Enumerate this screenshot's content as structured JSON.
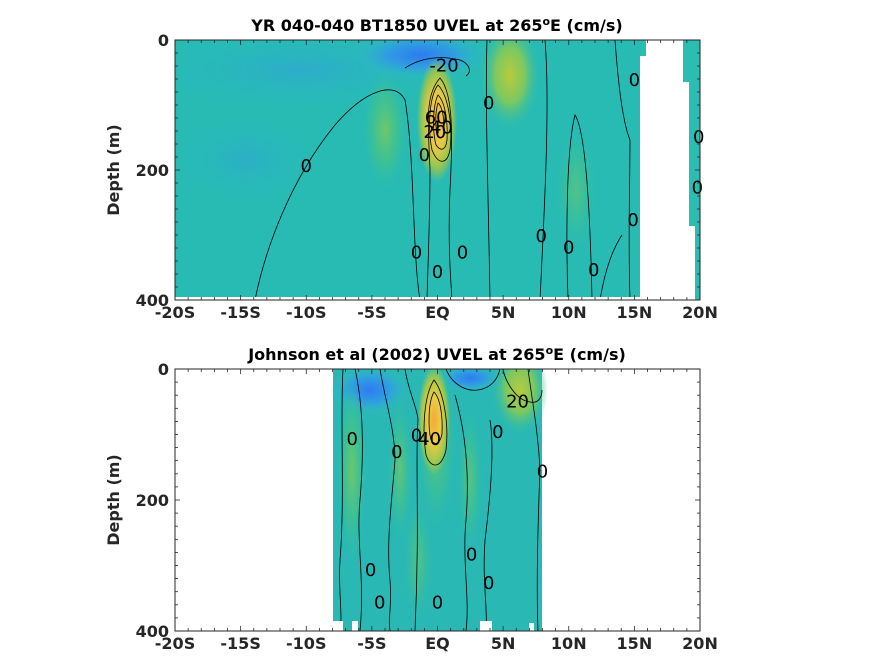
{
  "chart_data": [
    {
      "type": "heatmap",
      "title": "YR 040-040 BT1850 UVEL at 265ºE (cm/s)",
      "title_main": "YR 040-040 BT1850 UVEL at 265",
      "title_sup": "o",
      "title_tail": "E (cm/s)",
      "xlabel": "",
      "ylabel": "Depth (m)",
      "x_ticks": [
        "-20S",
        "-15S",
        "-10S",
        "-5S",
        "EQ",
        "5N",
        "10N",
        "15N",
        "20N"
      ],
      "x_tick_values": [
        -20,
        -15,
        -10,
        -5,
        0,
        5,
        10,
        15,
        20
      ],
      "y_ticks": [
        "0",
        "200",
        "400"
      ],
      "y_tick_values": [
        0,
        200,
        400
      ],
      "xlim": [
        -20,
        20
      ],
      "ylim": [
        400,
        0
      ],
      "data_extent_x": [
        -20,
        20
      ],
      "contour_levels": [
        -20,
        0,
        20,
        40,
        60
      ],
      "contour_labels": [
        {
          "text": "-20",
          "lat": 0.5,
          "depth": 38
        },
        {
          "text": "0",
          "lat": -10,
          "depth": 192
        },
        {
          "text": "0",
          "lat": -1,
          "depth": 175
        },
        {
          "text": "60",
          "lat": -0.1,
          "depth": 118
        },
        {
          "text": "40",
          "lat": 0.3,
          "depth": 133
        },
        {
          "text": "20",
          "lat": -0.2,
          "depth": 140
        },
        {
          "text": "0",
          "lat": 1.9,
          "depth": 325
        },
        {
          "text": "0",
          "lat": -1.6,
          "depth": 325
        },
        {
          "text": "0",
          "lat": 0,
          "depth": 355
        },
        {
          "text": "0",
          "lat": 3.9,
          "depth": 95
        },
        {
          "text": "0",
          "lat": 7.9,
          "depth": 300
        },
        {
          "text": "0",
          "lat": 10,
          "depth": 318
        },
        {
          "text": "0",
          "lat": 11.9,
          "depth": 352
        },
        {
          "text": "0",
          "lat": 14.9,
          "depth": 275
        },
        {
          "text": "0",
          "lat": 15,
          "depth": 60
        },
        {
          "text": "0",
          "lat": 19.9,
          "depth": 148
        },
        {
          "text": "0",
          "lat": 19.8,
          "depth": 225
        }
      ]
    },
    {
      "type": "heatmap",
      "title": "Johnson et al (2002) UVEL at 265ºE (cm/s)",
      "title_main": "Johnson et al (2002) UVEL at 265",
      "title_sup": "o",
      "title_tail": "E (cm/s)",
      "xlabel": "",
      "ylabel": "Depth (m)",
      "x_ticks": [
        "-20S",
        "-15S",
        "-10S",
        "-5S",
        "EQ",
        "5N",
        "10N",
        "15N",
        "20N"
      ],
      "x_tick_values": [
        -20,
        -15,
        -10,
        -5,
        0,
        5,
        10,
        15,
        20
      ],
      "y_ticks": [
        "0",
        "200",
        "400"
      ],
      "y_tick_values": [
        0,
        200,
        400
      ],
      "xlim": [
        -20,
        20
      ],
      "ylim": [
        400,
        0
      ],
      "data_extent_x": [
        -8,
        8
      ],
      "contour_levels": [
        -20,
        0,
        20,
        40
      ],
      "contour_labels": [
        {
          "text": "20",
          "lat": 6.1,
          "depth": 48
        },
        {
          "text": "40",
          "lat": -0.6,
          "depth": 105
        },
        {
          "text": "0",
          "lat": -6.5,
          "depth": 105
        },
        {
          "text": "0",
          "lat": -3.1,
          "depth": 125
        },
        {
          "text": "0",
          "lat": -1.6,
          "depth": 100
        },
        {
          "text": "0",
          "lat": 4.6,
          "depth": 95
        },
        {
          "text": "0",
          "lat": 8,
          "depth": 155
        },
        {
          "text": "0",
          "lat": 2.6,
          "depth": 282
        },
        {
          "text": "0",
          "lat": 3.9,
          "depth": 325
        },
        {
          "text": "0",
          "lat": -5.1,
          "depth": 305
        },
        {
          "text": "0",
          "lat": -4.4,
          "depth": 355
        },
        {
          "text": "0",
          "lat": 0,
          "depth": 355
        }
      ]
    }
  ]
}
